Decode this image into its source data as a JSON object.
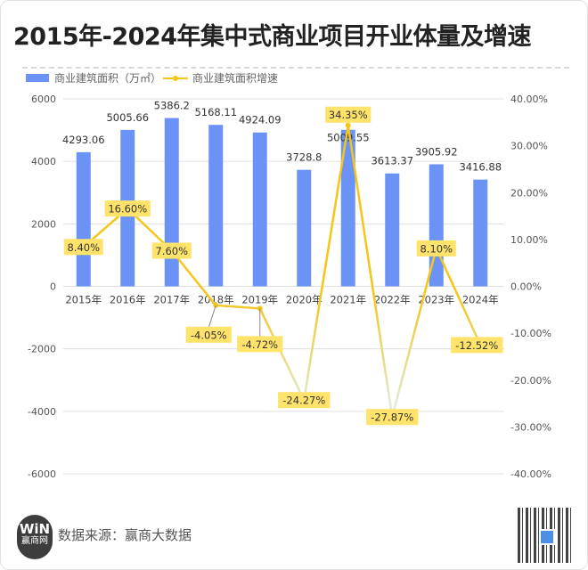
{
  "title": "2015年-2024年集中式商业项目开业体量及增速",
  "chart_data": {
    "type": "bar+line",
    "categories": [
      "2015年",
      "2016年",
      "2017年",
      "2018年",
      "2019年",
      "2020年",
      "2021年",
      "2022年",
      "2023年",
      "2024年"
    ],
    "series": [
      {
        "name": "商业建筑面积（万㎡）",
        "type": "bar",
        "axis": "left",
        "color": "#6b93f5",
        "values": [
          4293.06,
          5005.66,
          5386.2,
          5168.11,
          4924.09,
          3728.8,
          5009.55,
          3613.37,
          3905.92,
          3416.88
        ],
        "labels": [
          "4293.06",
          "5005.66",
          "5386.2",
          "5168.11",
          "4924.09",
          "3728.8",
          "5009.55",
          "3613.37",
          "3905.92",
          "3416.88"
        ]
      },
      {
        "name": "商业建筑面积增速",
        "type": "line",
        "axis": "right",
        "color": "#f5c518",
        "values": [
          8.4,
          16.6,
          7.6,
          -4.05,
          -4.72,
          -24.27,
          34.35,
          -27.87,
          8.1,
          -12.52
        ],
        "labels": [
          "8.40%",
          "16.60%",
          "7.60%",
          "-4.05%",
          "-4.72%",
          "-24.27%",
          "34.35%",
          "-27.87%",
          "8.10%",
          "-12.52%"
        ]
      }
    ],
    "left_axis": {
      "range": [
        -6000,
        6000
      ],
      "ticks": [
        "6000",
        "4000",
        "2000",
        "0",
        "-2000",
        "-4000",
        "-6000"
      ]
    },
    "right_axis": {
      "range": [
        -40,
        40
      ],
      "ticks": [
        "40.00%",
        "30.00%",
        "20.00%",
        "10.00%",
        "0.00%",
        "-10.00%",
        "-20.00%",
        "-30.00%",
        "-40.00%"
      ]
    },
    "legend": "top-left",
    "grid": "horizontal"
  },
  "footer": {
    "source": "数据来源：赢商大数据",
    "logo_text": "赢商网",
    "logo_mark": "WIN"
  }
}
